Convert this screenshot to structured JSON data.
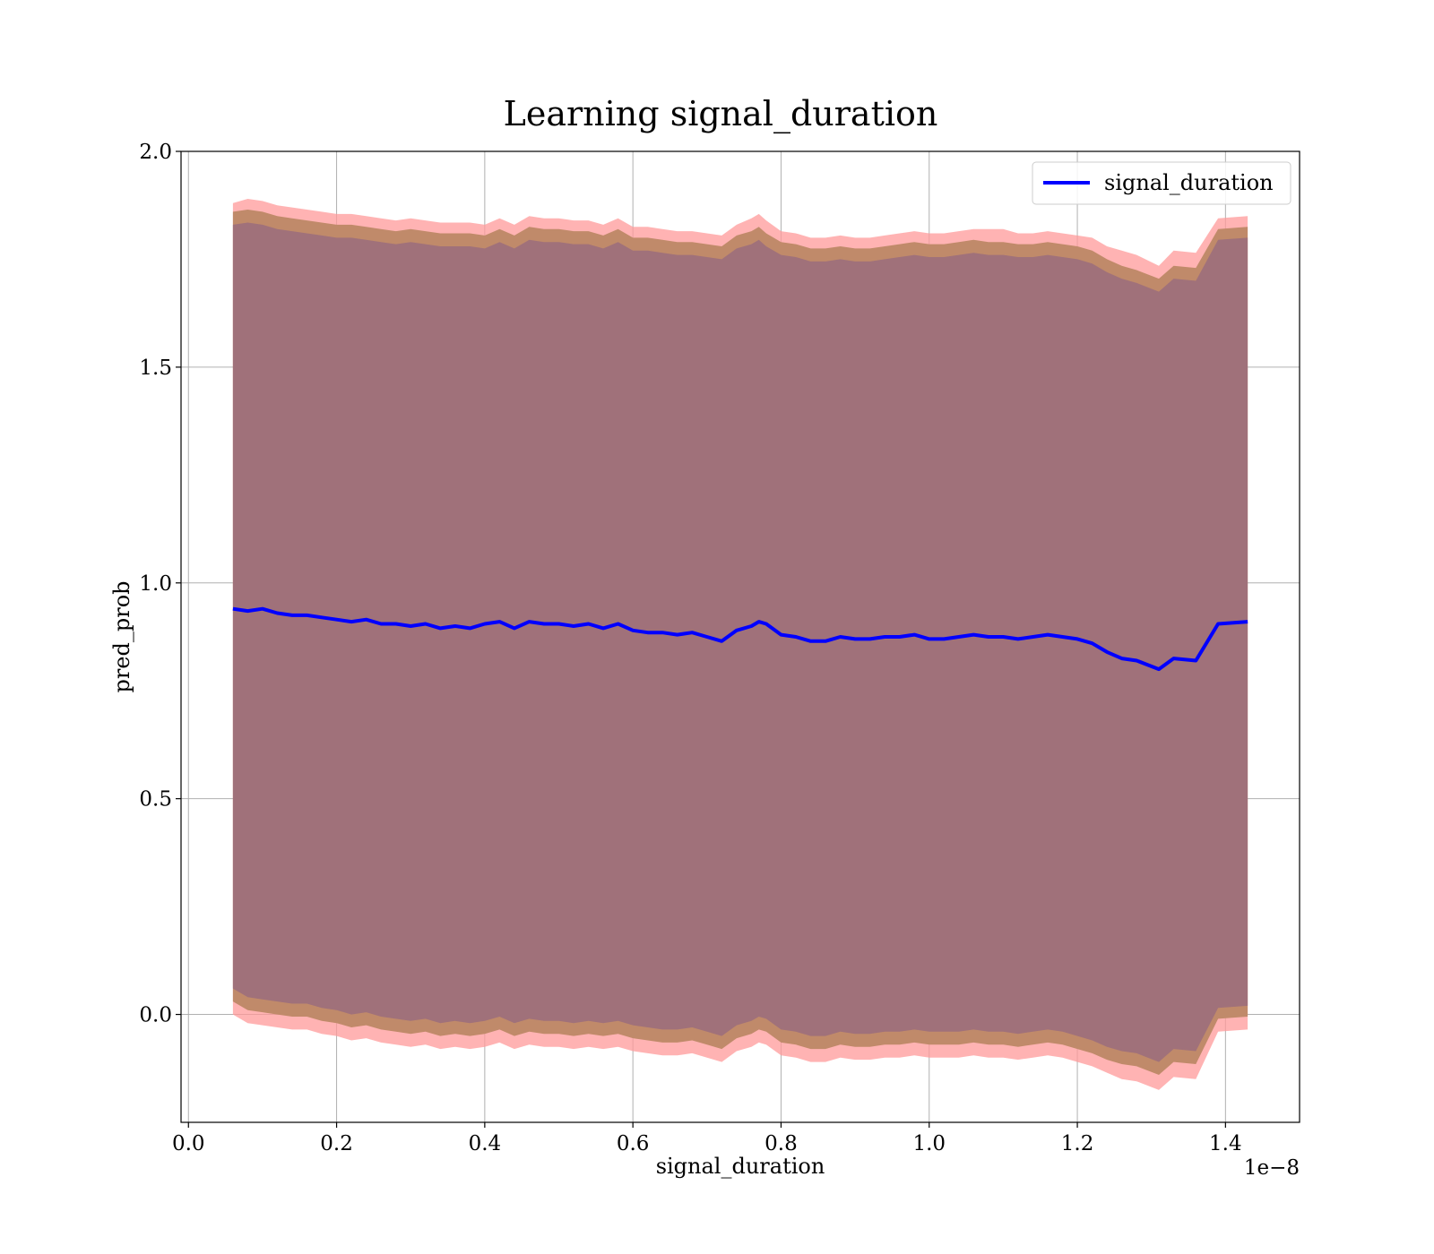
{
  "chart_data": {
    "type": "line",
    "title": "Learning signal_duration",
    "xlabel": "signal_duration",
    "ylabel": "pred_prob",
    "x_offset_label": "1e−8",
    "xlim": [
      -0.01,
      1.5
    ],
    "ylim": [
      -0.25,
      2.0
    ],
    "grid": true,
    "legend": {
      "position": "top-right",
      "entries": [
        "signal_duration"
      ]
    },
    "x_ticks": [
      {
        "value": 0.0,
        "label": "0.0"
      },
      {
        "value": 0.2,
        "label": "0.2"
      },
      {
        "value": 0.4,
        "label": "0.4"
      },
      {
        "value": 0.6,
        "label": "0.6"
      },
      {
        "value": 0.8,
        "label": "0.8"
      },
      {
        "value": 1.0,
        "label": "1.0"
      },
      {
        "value": 1.2,
        "label": "1.2"
      },
      {
        "value": 1.4,
        "label": "1.4"
      }
    ],
    "y_ticks": [
      {
        "value": 0.0,
        "label": "0.0"
      },
      {
        "value": 0.5,
        "label": "0.5"
      },
      {
        "value": 1.0,
        "label": "1.0"
      },
      {
        "value": 1.5,
        "label": "1.5"
      },
      {
        "value": 2.0,
        "label": "2.0"
      }
    ],
    "colors": {
      "line": "#0000ff",
      "band_outer": "#ff9999",
      "band_mid": "#c08a6a",
      "band_inner": "#a0717a",
      "grid": "#b0b0b0"
    },
    "series": [
      {
        "name": "signal_duration",
        "x": [
          0.06,
          0.08,
          0.1,
          0.12,
          0.14,
          0.16,
          0.18,
          0.2,
          0.22,
          0.24,
          0.26,
          0.28,
          0.3,
          0.32,
          0.34,
          0.36,
          0.38,
          0.4,
          0.42,
          0.44,
          0.46,
          0.48,
          0.5,
          0.52,
          0.54,
          0.56,
          0.58,
          0.6,
          0.62,
          0.64,
          0.66,
          0.68,
          0.7,
          0.72,
          0.74,
          0.76,
          0.77,
          0.78,
          0.8,
          0.82,
          0.84,
          0.86,
          0.88,
          0.9,
          0.92,
          0.94,
          0.96,
          0.98,
          1.0,
          1.02,
          1.04,
          1.06,
          1.08,
          1.1,
          1.12,
          1.14,
          1.16,
          1.18,
          1.2,
          1.22,
          1.24,
          1.26,
          1.28,
          1.31,
          1.33,
          1.36,
          1.39,
          1.43
        ],
        "y": [
          0.94,
          0.935,
          0.94,
          0.93,
          0.925,
          0.925,
          0.92,
          0.915,
          0.91,
          0.915,
          0.905,
          0.905,
          0.9,
          0.905,
          0.895,
          0.9,
          0.895,
          0.905,
          0.91,
          0.895,
          0.91,
          0.905,
          0.905,
          0.9,
          0.905,
          0.895,
          0.905,
          0.89,
          0.885,
          0.885,
          0.88,
          0.885,
          0.875,
          0.865,
          0.89,
          0.9,
          0.91,
          0.905,
          0.88,
          0.875,
          0.865,
          0.865,
          0.875,
          0.87,
          0.87,
          0.875,
          0.875,
          0.88,
          0.87,
          0.87,
          0.875,
          0.88,
          0.875,
          0.875,
          0.87,
          0.875,
          0.88,
          0.875,
          0.87,
          0.86,
          0.84,
          0.825,
          0.82,
          0.8,
          0.825,
          0.82,
          0.905,
          0.91
        ],
        "band_outer": {
          "upper": [
            1.88,
            1.89,
            1.885,
            1.875,
            1.87,
            1.865,
            1.86,
            1.855,
            1.855,
            1.85,
            1.845,
            1.84,
            1.845,
            1.84,
            1.835,
            1.835,
            1.835,
            1.83,
            1.845,
            1.83,
            1.85,
            1.845,
            1.845,
            1.84,
            1.84,
            1.83,
            1.845,
            1.825,
            1.825,
            1.82,
            1.815,
            1.815,
            1.81,
            1.805,
            1.83,
            1.845,
            1.855,
            1.84,
            1.815,
            1.81,
            1.8,
            1.8,
            1.805,
            1.8,
            1.8,
            1.805,
            1.81,
            1.815,
            1.81,
            1.81,
            1.815,
            1.82,
            1.82,
            1.82,
            1.81,
            1.81,
            1.815,
            1.81,
            1.805,
            1.8,
            1.78,
            1.77,
            1.76,
            1.735,
            1.77,
            1.765,
            1.845,
            1.85
          ],
          "lower": [
            0.0,
            -0.02,
            -0.025,
            -0.03,
            -0.035,
            -0.035,
            -0.045,
            -0.05,
            -0.06,
            -0.055,
            -0.065,
            -0.07,
            -0.075,
            -0.07,
            -0.08,
            -0.075,
            -0.08,
            -0.075,
            -0.065,
            -0.08,
            -0.07,
            -0.075,
            -0.075,
            -0.08,
            -0.075,
            -0.08,
            -0.075,
            -0.085,
            -0.09,
            -0.095,
            -0.095,
            -0.09,
            -0.1,
            -0.11,
            -0.085,
            -0.075,
            -0.065,
            -0.07,
            -0.095,
            -0.1,
            -0.11,
            -0.11,
            -0.1,
            -0.105,
            -0.105,
            -0.1,
            -0.1,
            -0.095,
            -0.1,
            -0.1,
            -0.1,
            -0.095,
            -0.1,
            -0.1,
            -0.105,
            -0.1,
            -0.095,
            -0.1,
            -0.11,
            -0.12,
            -0.135,
            -0.15,
            -0.155,
            -0.175,
            -0.145,
            -0.15,
            -0.04,
            -0.035
          ]
        },
        "band_mid": {
          "upper": [
            1.86,
            1.865,
            1.86,
            1.85,
            1.845,
            1.84,
            1.835,
            1.83,
            1.83,
            1.825,
            1.82,
            1.815,
            1.82,
            1.815,
            1.81,
            1.81,
            1.81,
            1.805,
            1.82,
            1.805,
            1.825,
            1.82,
            1.82,
            1.815,
            1.815,
            1.805,
            1.82,
            1.8,
            1.8,
            1.795,
            1.79,
            1.79,
            1.785,
            1.78,
            1.805,
            1.815,
            1.825,
            1.81,
            1.79,
            1.785,
            1.775,
            1.775,
            1.78,
            1.775,
            1.775,
            1.78,
            1.785,
            1.79,
            1.785,
            1.785,
            1.79,
            1.795,
            1.79,
            1.79,
            1.785,
            1.785,
            1.79,
            1.785,
            1.78,
            1.77,
            1.75,
            1.735,
            1.725,
            1.705,
            1.735,
            1.73,
            1.82,
            1.825
          ],
          "lower": [
            0.03,
            0.01,
            0.005,
            0.0,
            -0.005,
            -0.005,
            -0.015,
            -0.02,
            -0.03,
            -0.025,
            -0.035,
            -0.04,
            -0.045,
            -0.04,
            -0.05,
            -0.045,
            -0.05,
            -0.045,
            -0.035,
            -0.05,
            -0.04,
            -0.045,
            -0.045,
            -0.05,
            -0.045,
            -0.05,
            -0.045,
            -0.055,
            -0.06,
            -0.065,
            -0.065,
            -0.06,
            -0.07,
            -0.08,
            -0.055,
            -0.045,
            -0.035,
            -0.04,
            -0.065,
            -0.07,
            -0.08,
            -0.08,
            -0.07,
            -0.075,
            -0.075,
            -0.07,
            -0.07,
            -0.065,
            -0.07,
            -0.07,
            -0.07,
            -0.065,
            -0.07,
            -0.07,
            -0.075,
            -0.07,
            -0.065,
            -0.07,
            -0.08,
            -0.09,
            -0.105,
            -0.115,
            -0.12,
            -0.14,
            -0.11,
            -0.115,
            -0.01,
            -0.005
          ]
        },
        "band_inner": {
          "upper": [
            1.83,
            1.835,
            1.83,
            1.82,
            1.815,
            1.81,
            1.805,
            1.8,
            1.8,
            1.795,
            1.79,
            1.785,
            1.79,
            1.785,
            1.78,
            1.78,
            1.78,
            1.775,
            1.79,
            1.775,
            1.795,
            1.79,
            1.79,
            1.785,
            1.785,
            1.775,
            1.79,
            1.77,
            1.77,
            1.765,
            1.76,
            1.76,
            1.755,
            1.75,
            1.775,
            1.785,
            1.795,
            1.78,
            1.76,
            1.755,
            1.745,
            1.745,
            1.75,
            1.745,
            1.745,
            1.75,
            1.755,
            1.76,
            1.755,
            1.755,
            1.76,
            1.765,
            1.76,
            1.76,
            1.755,
            1.755,
            1.76,
            1.755,
            1.75,
            1.74,
            1.72,
            1.705,
            1.695,
            1.675,
            1.705,
            1.7,
            1.795,
            1.8
          ],
          "lower": [
            0.06,
            0.04,
            0.035,
            0.03,
            0.025,
            0.025,
            0.015,
            0.01,
            0.0,
            0.005,
            -0.005,
            -0.01,
            -0.015,
            -0.01,
            -0.02,
            -0.015,
            -0.02,
            -0.015,
            -0.005,
            -0.02,
            -0.01,
            -0.015,
            -0.015,
            -0.02,
            -0.015,
            -0.02,
            -0.015,
            -0.025,
            -0.03,
            -0.035,
            -0.035,
            -0.03,
            -0.04,
            -0.05,
            -0.025,
            -0.015,
            -0.005,
            -0.01,
            -0.035,
            -0.04,
            -0.05,
            -0.05,
            -0.04,
            -0.045,
            -0.045,
            -0.04,
            -0.04,
            -0.035,
            -0.04,
            -0.04,
            -0.04,
            -0.035,
            -0.04,
            -0.04,
            -0.045,
            -0.04,
            -0.035,
            -0.04,
            -0.05,
            -0.06,
            -0.075,
            -0.085,
            -0.09,
            -0.11,
            -0.08,
            -0.085,
            0.015,
            0.02
          ]
        }
      }
    ]
  }
}
